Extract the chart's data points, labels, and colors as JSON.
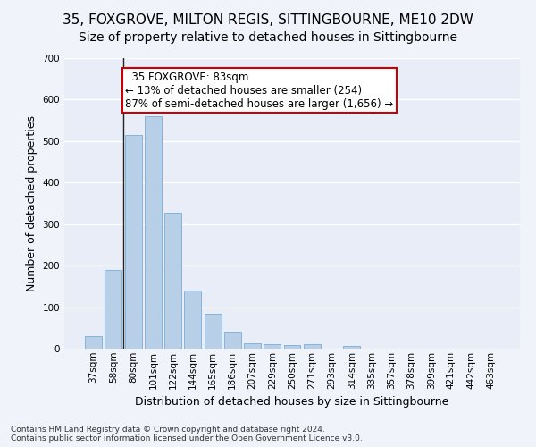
{
  "title_line1": "35, FOXGROVE, MILTON REGIS, SITTINGBOURNE, ME10 2DW",
  "title_line2": "Size of property relative to detached houses in Sittingbourne",
  "xlabel": "Distribution of detached houses by size in Sittingbourne",
  "ylabel": "Number of detached properties",
  "footer": "Contains HM Land Registry data © Crown copyright and database right 2024.\nContains public sector information licensed under the Open Government Licence v3.0.",
  "categories": [
    "37sqm",
    "58sqm",
    "80sqm",
    "101sqm",
    "122sqm",
    "144sqm",
    "165sqm",
    "186sqm",
    "207sqm",
    "229sqm",
    "250sqm",
    "271sqm",
    "293sqm",
    "314sqm",
    "335sqm",
    "357sqm",
    "378sqm",
    "399sqm",
    "421sqm",
    "442sqm",
    "463sqm"
  ],
  "values": [
    30,
    190,
    515,
    560,
    328,
    140,
    85,
    40,
    13,
    10,
    8,
    10,
    0,
    7,
    0,
    0,
    0,
    0,
    0,
    0,
    0
  ],
  "bar_color": "#b8cfe8",
  "bar_edge_color": "#7aacd4",
  "annotation_text": "  35 FOXGROVE: 83sqm  \n← 13% of detached houses are smaller (254)\n87% of semi-detached houses are larger (1,656) →",
  "annotation_box_color": "white",
  "annotation_box_edge_color": "#cc0000",
  "vline_x_index": 1.5,
  "ylim": [
    0,
    700
  ],
  "yticks": [
    0,
    100,
    200,
    300,
    400,
    500,
    600,
    700
  ],
  "background_color": "#e8edf7",
  "grid_color": "white",
  "fig_background": "#f0f3fa",
  "title1_fontsize": 11,
  "title2_fontsize": 10,
  "axis_label_fontsize": 9,
  "tick_fontsize": 7.5,
  "annotation_fontsize": 8.5,
  "footer_fontsize": 6.5
}
